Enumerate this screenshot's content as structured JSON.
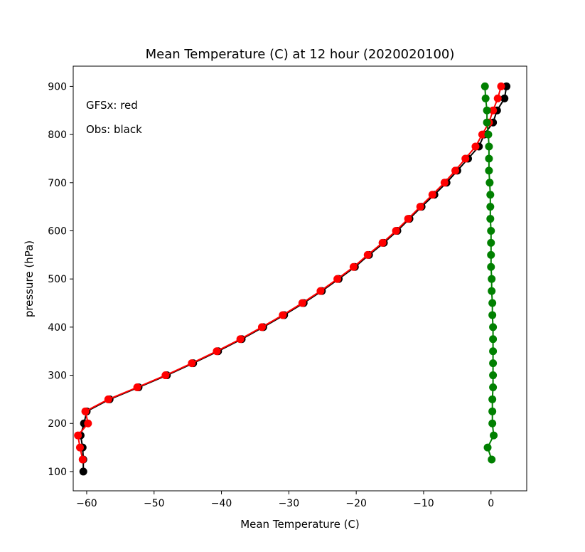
{
  "chart_data": {
    "type": "line",
    "title": "Mean Temperature (C) at 12 hour (2020020100)",
    "xlabel": "Mean Temperature (C)",
    "ylabel": "pressure (hPa)",
    "xlim": [
      -62,
      5.3
    ],
    "ylim": [
      60,
      942
    ],
    "xticks": [
      -60,
      -50,
      -40,
      -30,
      -20,
      -10,
      0
    ],
    "xtick_labels": [
      "−60",
      "−50",
      "−40",
      "−30",
      "−20",
      "−10",
      "0"
    ],
    "yticks": [
      100,
      200,
      300,
      400,
      500,
      600,
      700,
      800,
      900
    ],
    "ytick_labels": [
      "100",
      "200",
      "300",
      "400",
      "500",
      "600",
      "700",
      "800",
      "900"
    ],
    "annotations": [
      "GFSx: red",
      "Obs: black"
    ],
    "grid": false,
    "series": [
      {
        "color": "#000000",
        "points": [
          [
            2.3,
            900
          ],
          [
            2.0,
            875
          ],
          [
            0.9,
            850
          ],
          [
            0.3,
            825
          ],
          [
            -1.0,
            800
          ],
          [
            -1.8,
            775
          ],
          [
            -3.4,
            750
          ],
          [
            -5.0,
            725
          ],
          [
            -6.6,
            700
          ],
          [
            -8.4,
            675
          ],
          [
            -10.3,
            650
          ],
          [
            -12.1,
            625
          ],
          [
            -13.9,
            600
          ],
          [
            -15.9,
            575
          ],
          [
            -18.1,
            550
          ],
          [
            -20.2,
            525
          ],
          [
            -22.6,
            500
          ],
          [
            -25.1,
            475
          ],
          [
            -27.8,
            450
          ],
          [
            -30.7,
            425
          ],
          [
            -33.8,
            400
          ],
          [
            -37.0,
            375
          ],
          [
            -40.5,
            350
          ],
          [
            -44.2,
            325
          ],
          [
            -48.1,
            300
          ],
          [
            -52.3,
            275
          ],
          [
            -56.6,
            250
          ],
          [
            -60.0,
            225
          ],
          [
            -60.4,
            200
          ],
          [
            -60.9,
            175
          ],
          [
            -60.6,
            150
          ],
          [
            -60.5,
            125
          ],
          [
            -60.5,
            100
          ]
        ]
      },
      {
        "color": "#ff0000",
        "points": [
          [
            1.5,
            900
          ],
          [
            1.0,
            875
          ],
          [
            0.3,
            850
          ],
          [
            -0.3,
            825
          ],
          [
            -1.3,
            800
          ],
          [
            -2.3,
            775
          ],
          [
            -3.8,
            750
          ],
          [
            -5.3,
            725
          ],
          [
            -6.9,
            700
          ],
          [
            -8.7,
            675
          ],
          [
            -10.5,
            650
          ],
          [
            -12.3,
            625
          ],
          [
            -14.1,
            600
          ],
          [
            -16.1,
            575
          ],
          [
            -18.3,
            550
          ],
          [
            -20.4,
            525
          ],
          [
            -22.8,
            500
          ],
          [
            -25.3,
            475
          ],
          [
            -28.0,
            450
          ],
          [
            -30.9,
            425
          ],
          [
            -34.0,
            400
          ],
          [
            -37.2,
            375
          ],
          [
            -40.7,
            350
          ],
          [
            -44.4,
            325
          ],
          [
            -48.3,
            300
          ],
          [
            -52.5,
            275
          ],
          [
            -56.8,
            250
          ],
          [
            -60.2,
            225
          ],
          [
            -59.8,
            200
          ],
          [
            -61.3,
            175
          ],
          [
            -61.0,
            150
          ],
          [
            -60.6,
            125
          ]
        ]
      },
      {
        "color": "#008000",
        "points": [
          [
            -0.9,
            900
          ],
          [
            -0.8,
            875
          ],
          [
            -0.6,
            850
          ],
          [
            -0.6,
            825
          ],
          [
            -0.4,
            800
          ],
          [
            -0.3,
            775
          ],
          [
            -0.3,
            750
          ],
          [
            -0.3,
            725
          ],
          [
            -0.2,
            700
          ],
          [
            -0.1,
            675
          ],
          [
            -0.1,
            650
          ],
          [
            -0.1,
            625
          ],
          [
            0.0,
            600
          ],
          [
            0.0,
            575
          ],
          [
            0.0,
            550
          ],
          [
            0.0,
            525
          ],
          [
            0.1,
            500
          ],
          [
            0.1,
            475
          ],
          [
            0.2,
            450
          ],
          [
            0.2,
            425
          ],
          [
            0.3,
            400
          ],
          [
            0.3,
            375
          ],
          [
            0.3,
            350
          ],
          [
            0.3,
            325
          ],
          [
            0.3,
            300
          ],
          [
            0.3,
            275
          ],
          [
            0.2,
            250
          ],
          [
            0.2,
            225
          ],
          [
            0.2,
            200
          ],
          [
            0.4,
            175
          ],
          [
            -0.5,
            150
          ],
          [
            0.1,
            125
          ]
        ]
      }
    ]
  }
}
